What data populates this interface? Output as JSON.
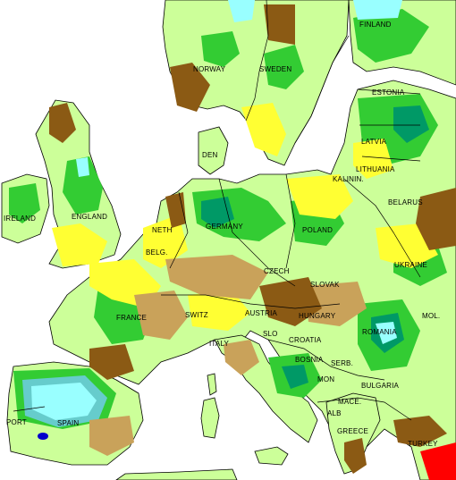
{
  "map": {
    "colors": {
      "sea": "#ffffff",
      "very_dry": "#8b5a14",
      "dry": "#c9a25a",
      "slightly_dry": "#ffff33",
      "normal": "#ccff99",
      "wet": "#33cc33",
      "very_wet": "#009966",
      "extremely_wet": "#66cccc",
      "exceptionally_wet": "#99ffff",
      "extreme_dry_red": "#ff0000",
      "extreme_wet_blue": "#0000cc",
      "border": "#000000"
    },
    "labels": {
      "finland": "FINLAND",
      "norway": "NORWAY",
      "sweden": "SWEDEN",
      "estonia": "ESTONIA",
      "latvia": "LATVIA",
      "lithuania": "LITHUANIA",
      "den": "DEN",
      "kalinin": "KALININ.",
      "belarus": "BELARUS",
      "ireland": "IRELAND",
      "england": "ENGLAND",
      "neth": "NETH",
      "germany": "GERMANY",
      "poland": "POLAND",
      "belg": "BELG.",
      "czech": "CZECH",
      "ukraine": "UKRAINE",
      "slovak": "SLOVAK",
      "france": "FRANCE",
      "switz": "SWITZ",
      "austria": "AUSTRIA",
      "hungary": "HUNGARY",
      "mol": "MOL.",
      "slo": "SLO",
      "croatia": "CROATIA",
      "romania": "ROMANIA",
      "italy": "ITALY",
      "bosnia": "BOSNIA",
      "serb": "SERB.",
      "mon": "MON",
      "bulgaria": "BULGARIA",
      "mace": "MACE.",
      "alb": "ALB",
      "port": "PORT",
      "spain": "SPAIN",
      "greece": "GREECE",
      "turkey": "TURKEY"
    }
  }
}
